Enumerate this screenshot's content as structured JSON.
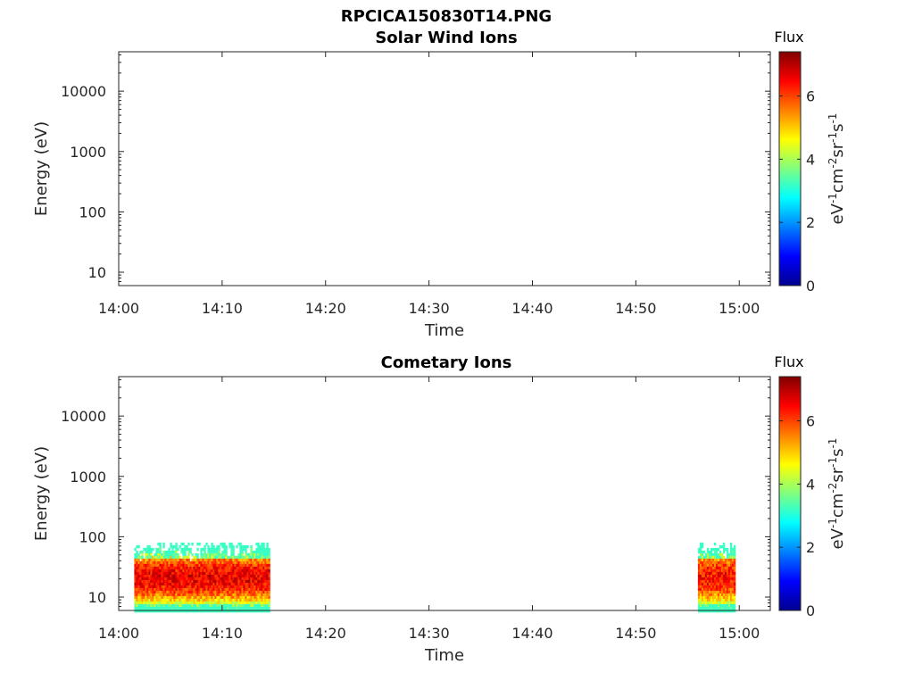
{
  "figure_title": "RPCICA150830T14.PNG",
  "chart_data": [
    {
      "type": "heatmap",
      "title": "Solar Wind Ions",
      "xlabel": "Time",
      "ylabel": "Energy (eV)",
      "x_ticks": [
        "14:00",
        "14:10",
        "14:20",
        "14:30",
        "14:40",
        "14:50",
        "15:00"
      ],
      "x_range": [
        "14:00",
        "15:03"
      ],
      "y_scale": "log",
      "y_ticks": [
        10,
        100,
        1000,
        10000
      ],
      "y_tick_labels": [
        "10",
        "100",
        "1000",
        "10000"
      ],
      "y_range": [
        6,
        45000
      ],
      "colorbar": {
        "title": "Flux",
        "label": "eV-1cm-2sr-1s-1",
        "ticks": [
          "0",
          "2",
          "4",
          "6"
        ],
        "range": [
          0,
          7.4
        ],
        "colormap": "jet"
      },
      "blocks": []
    },
    {
      "type": "heatmap",
      "title": "Cometary Ions",
      "xlabel": "Time",
      "ylabel": "Energy (eV)",
      "x_ticks": [
        "14:00",
        "14:10",
        "14:20",
        "14:30",
        "14:40",
        "14:50",
        "15:00"
      ],
      "x_range": [
        "14:00",
        "15:03"
      ],
      "y_scale": "log",
      "y_ticks": [
        10,
        100,
        1000,
        10000
      ],
      "y_tick_labels": [
        "10",
        "100",
        "1000",
        "10000"
      ],
      "y_range": [
        6,
        45000
      ],
      "colorbar": {
        "title": "Flux",
        "label": "eV-1cm-2sr-1s-1",
        "ticks": [
          "0",
          "2",
          "4",
          "6"
        ],
        "range": [
          0,
          7.4
        ],
        "colormap": "jet"
      },
      "blocks": [
        {
          "t_start": "14:01.5",
          "t_end": "14:14.5",
          "e_min": 6,
          "e_max": 80,
          "peak_flux": 7.2
        },
        {
          "t_start": "14:56.0",
          "t_end": "14:59.5",
          "e_min": 6,
          "e_max": 80,
          "peak_flux": 7.0
        }
      ]
    }
  ]
}
